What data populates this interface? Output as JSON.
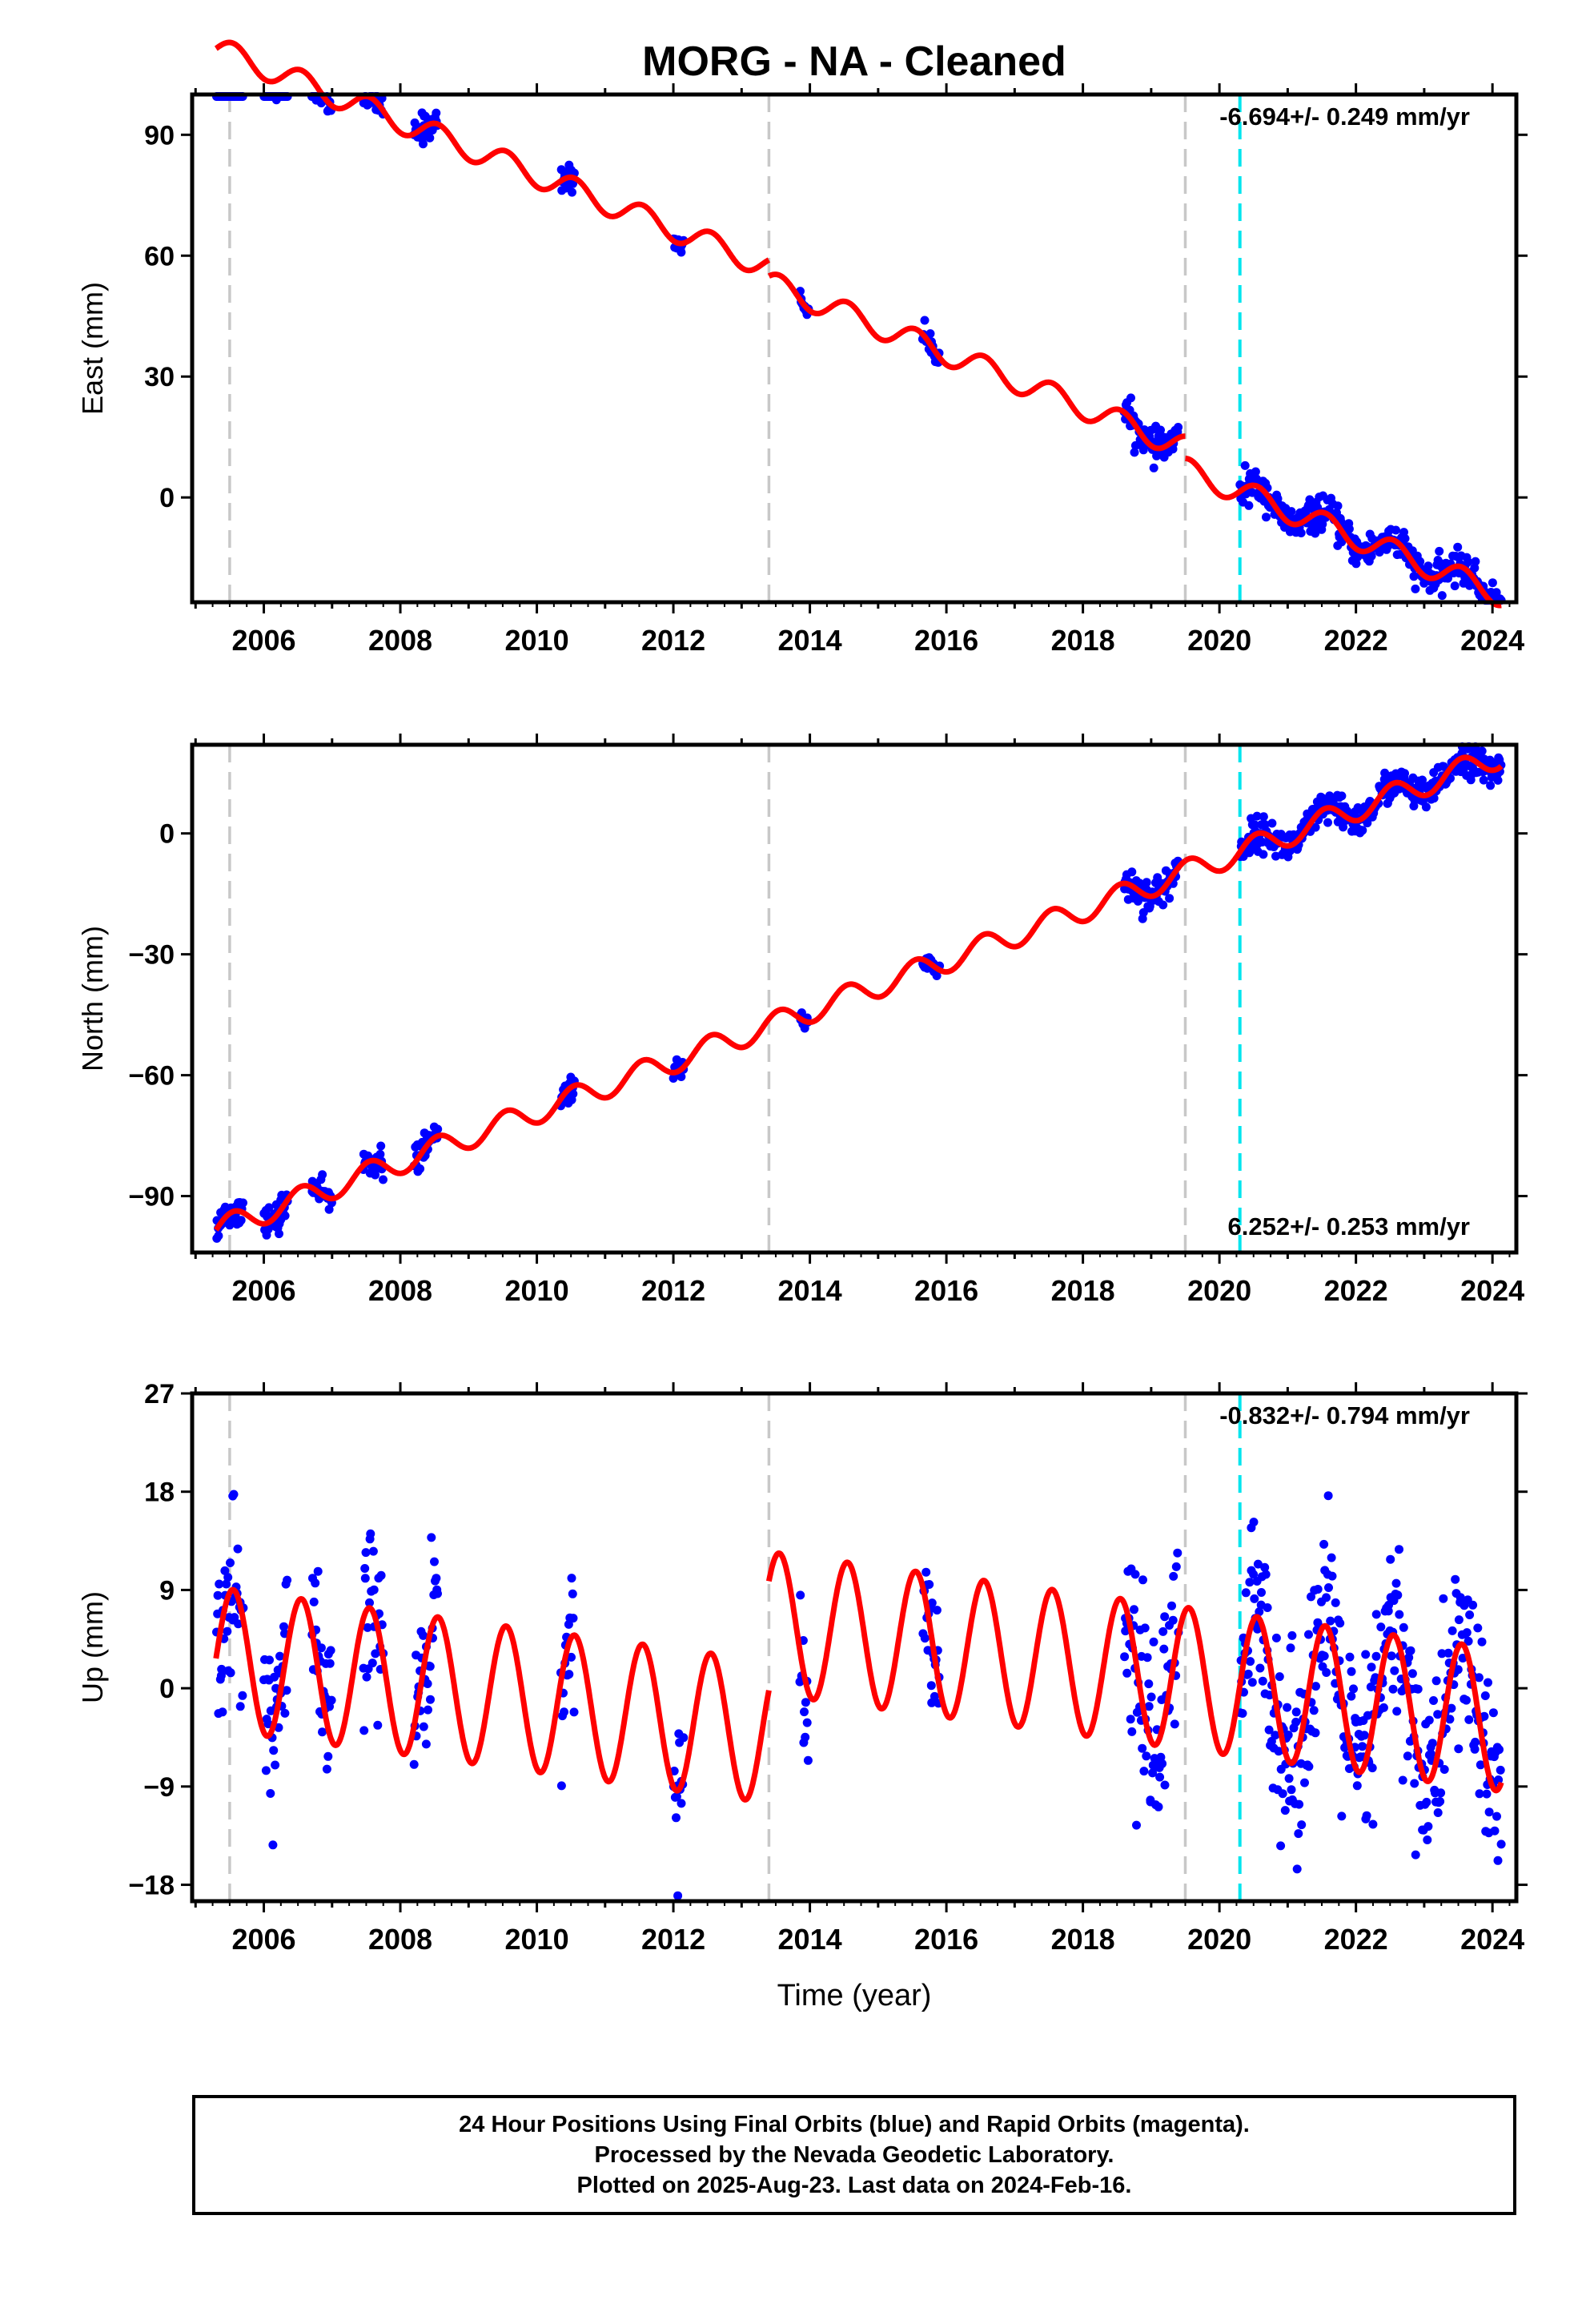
{
  "title": "MORG  - NA - Cleaned",
  "colors": {
    "data": "#0000ff",
    "model": "#ff0000",
    "equipment_break": "#c8c8c8",
    "earthquake_break": "#00e5ee"
  },
  "footer": {
    "line1": "24 Hour Positions Using Final Orbits (blue) and Rapid Orbits (magenta).",
    "line2": "Processed by the Nevada Geodetic Laboratory.",
    "line3": "Plotted on 2025-Aug-23. Last data on 2024-Feb-16."
  },
  "chart_data": [
    {
      "type": "scatter",
      "component": "East",
      "ylabel": "East (mm)",
      "xlabel": "",
      "rate_label": "-6.694+/- 0.249 mm/yr",
      "rate_position": "top-right",
      "xlim": [
        2004.95,
        2024.35
      ],
      "ylim": [
        -26,
        100
      ],
      "yticks": [
        0,
        30,
        60,
        90
      ],
      "xticks": [
        2006,
        2008,
        2010,
        2012,
        2014,
        2016,
        2018,
        2020,
        2022,
        2024
      ],
      "rate": -6.694,
      "offset_at_2020": 3.5,
      "annual_amplitude": 3.0,
      "step_breaks": [
        [
          2013.4,
          4.0
        ],
        [
          2019.5,
          5.5
        ]
      ],
      "vertical_lines": [
        {
          "x": 2005.5,
          "kind": "equipment"
        },
        {
          "x": 2013.4,
          "kind": "equipment"
        },
        {
          "x": 2019.5,
          "kind": "equipment"
        },
        {
          "x": 2020.3,
          "kind": "earthquake"
        }
      ],
      "data_segments": [
        {
          "start": 2005.3,
          "end": 2005.7,
          "scatter": 1.6
        },
        {
          "start": 2006.0,
          "end": 2006.35,
          "scatter": 2.0
        },
        {
          "start": 2006.7,
          "end": 2007.0,
          "scatter": 1.6
        },
        {
          "start": 2007.45,
          "end": 2007.75,
          "scatter": 1.6
        },
        {
          "start": 2008.2,
          "end": 2008.55,
          "scatter": 1.8
        },
        {
          "start": 2010.35,
          "end": 2010.55,
          "scatter": 1.6
        },
        {
          "start": 2012.0,
          "end": 2012.15,
          "scatter": 1.2
        },
        {
          "start": 2013.85,
          "end": 2013.98,
          "scatter": 1.0
        },
        {
          "start": 2015.65,
          "end": 2015.9,
          "scatter": 1.4
        },
        {
          "start": 2018.6,
          "end": 2019.4,
          "scatter": 2.0
        },
        {
          "start": 2020.3,
          "end": 2024.13,
          "scatter": 2.0
        }
      ]
    },
    {
      "type": "scatter",
      "component": "North",
      "ylabel": "North (mm)",
      "xlabel": "",
      "rate_label": "6.252+/- 0.253 mm/yr",
      "rate_position": "bottom-right",
      "xlim": [
        2004.95,
        2024.35
      ],
      "ylim": [
        -104,
        22
      ],
      "yticks": [
        -90,
        -60,
        -30,
        0
      ],
      "xticks": [
        2006,
        2008,
        2010,
        2012,
        2014,
        2016,
        2018,
        2020,
        2022,
        2024
      ],
      "rate": 6.252,
      "offset_at_2020": -6.5,
      "annual_amplitude": 3.0,
      "step_breaks": [
        [
          2019.5,
          0.0
        ]
      ],
      "vertical_lines": [
        {
          "x": 2005.5,
          "kind": "equipment"
        },
        {
          "x": 2013.4,
          "kind": "equipment"
        },
        {
          "x": 2019.5,
          "kind": "equipment"
        },
        {
          "x": 2020.3,
          "kind": "earthquake"
        }
      ],
      "data_segments": [
        {
          "start": 2005.3,
          "end": 2005.7,
          "scatter": 1.6
        },
        {
          "start": 2006.0,
          "end": 2006.35,
          "scatter": 2.2
        },
        {
          "start": 2006.7,
          "end": 2007.0,
          "scatter": 1.6
        },
        {
          "start": 2007.45,
          "end": 2007.75,
          "scatter": 1.8
        },
        {
          "start": 2008.2,
          "end": 2008.55,
          "scatter": 1.8
        },
        {
          "start": 2010.35,
          "end": 2010.55,
          "scatter": 1.6
        },
        {
          "start": 2012.0,
          "end": 2012.15,
          "scatter": 1.2
        },
        {
          "start": 2013.85,
          "end": 2013.98,
          "scatter": 1.0
        },
        {
          "start": 2015.65,
          "end": 2015.9,
          "scatter": 1.4
        },
        {
          "start": 2018.6,
          "end": 2019.4,
          "scatter": 2.2
        },
        {
          "start": 2020.3,
          "end": 2024.13,
          "scatter": 2.0
        }
      ]
    },
    {
      "type": "scatter",
      "component": "Up",
      "ylabel": "Up (mm)",
      "xlabel": "Time (year)",
      "rate_label": "-0.832+/- 0.794 mm/yr",
      "rate_position": "top-right",
      "xlim": [
        2004.95,
        2024.35
      ],
      "ylim": [
        -19.5,
        27
      ],
      "yticks": [
        -18,
        -9,
        0,
        9,
        18,
        27
      ],
      "xticks": [
        2006,
        2008,
        2010,
        2012,
        2014,
        2016,
        2018,
        2020,
        2022,
        2024
      ],
      "rate": -0.832,
      "offset_at_2020": 0.5,
      "annual_amplitude": 6.5,
      "step_breaks": [
        [
          2013.4,
          -10.0
        ]
      ],
      "vertical_lines": [
        {
          "x": 2005.5,
          "kind": "equipment"
        },
        {
          "x": 2013.4,
          "kind": "equipment"
        },
        {
          "x": 2019.5,
          "kind": "equipment"
        },
        {
          "x": 2020.3,
          "kind": "earthquake"
        }
      ],
      "data_segments": [
        {
          "start": 2005.3,
          "end": 2005.7,
          "scatter": 4.0
        },
        {
          "start": 2006.0,
          "end": 2006.35,
          "scatter": 4.5
        },
        {
          "start": 2006.7,
          "end": 2007.0,
          "scatter": 4.0
        },
        {
          "start": 2007.45,
          "end": 2007.75,
          "scatter": 4.0
        },
        {
          "start": 2008.2,
          "end": 2008.55,
          "scatter": 4.0
        },
        {
          "start": 2010.35,
          "end": 2010.55,
          "scatter": 3.5
        },
        {
          "start": 2012.0,
          "end": 2012.15,
          "scatter": 3.0
        },
        {
          "start": 2013.85,
          "end": 2013.98,
          "scatter": 3.0
        },
        {
          "start": 2015.65,
          "end": 2015.9,
          "scatter": 3.0
        },
        {
          "start": 2018.6,
          "end": 2019.4,
          "scatter": 5.0
        },
        {
          "start": 2020.3,
          "end": 2024.13,
          "scatter": 4.5
        }
      ]
    }
  ]
}
